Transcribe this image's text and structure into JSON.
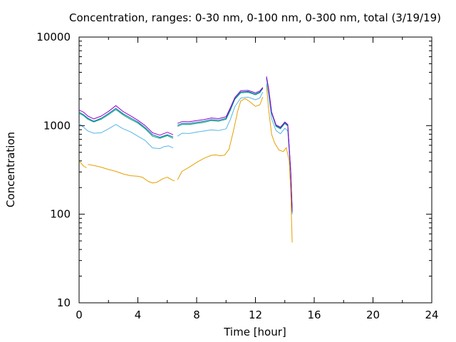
{
  "chart_data": {
    "type": "line",
    "title": "Concentration, ranges: 0-30 nm, 0-100 nm, 0-300 nm, total (3/19/19)",
    "xlabel": "Time [hour]",
    "ylabel": "Concentration",
    "xlim": [
      0,
      24
    ],
    "ylim": [
      10,
      10000
    ],
    "yscale": "log",
    "xticks": [
      0,
      4,
      8,
      12,
      16,
      20,
      24
    ],
    "yticks": [
      10,
      100,
      1000,
      10000
    ],
    "xtick_labels": [
      "0",
      "4",
      "8",
      "12",
      "16",
      "20",
      "24"
    ],
    "ytick_labels": [
      "10",
      "100",
      "1000",
      "10000"
    ],
    "grid": false,
    "legend": "none",
    "colors": [
      "#e69f00",
      "#56b4e9",
      "#009e73",
      "#0072b2",
      "#9400d3"
    ],
    "series": [
      {
        "color": "#e69f00",
        "segments": [
          [
            [
              0,
              400
            ],
            [
              0.3,
              350
            ],
            [
              0.5,
              335
            ]
          ],
          [
            [
              0.6,
              365
            ],
            [
              1.0,
              355
            ],
            [
              1.5,
              340
            ],
            [
              2.0,
              320
            ],
            [
              2.5,
              305
            ],
            [
              3.0,
              285
            ],
            [
              3.5,
              272
            ],
            [
              4.0,
              268
            ],
            [
              4.3,
              262
            ],
            [
              4.7,
              235
            ],
            [
              5.0,
              225
            ],
            [
              5.3,
              230
            ],
            [
              5.7,
              252
            ],
            [
              6.0,
              262
            ],
            [
              6.3,
              245
            ],
            [
              6.5,
              237
            ]
          ],
          [
            [
              6.7,
              245
            ],
            [
              7.0,
              305
            ],
            [
              7.5,
              340
            ],
            [
              8.0,
              385
            ],
            [
              8.5,
              428
            ],
            [
              9.0,
              462
            ],
            [
              9.3,
              467
            ],
            [
              9.6,
              457
            ],
            [
              9.9,
              465
            ],
            [
              10.2,
              540
            ],
            [
              10.5,
              870
            ],
            [
              10.8,
              1480
            ],
            [
              11.0,
              1900
            ],
            [
              11.3,
              2020
            ],
            [
              11.6,
              1870
            ],
            [
              12.0,
              1650
            ],
            [
              12.3,
              1720
            ],
            [
              12.5,
              2100
            ]
          ],
          [
            [
              12.75,
              2850
            ],
            [
              12.9,
              1500
            ],
            [
              13.1,
              800
            ],
            [
              13.3,
              640
            ],
            [
              13.6,
              530
            ],
            [
              13.9,
              510
            ],
            [
              14.1,
              565
            ],
            [
              14.3,
              400
            ],
            [
              14.4,
              180
            ],
            [
              14.5,
              48
            ]
          ]
        ]
      },
      {
        "color": "#56b4e9",
        "segments": [
          [
            [
              0,
              1060
            ],
            [
              0.3,
              960
            ],
            [
              0.6,
              870
            ],
            [
              1.0,
              820
            ],
            [
              1.5,
              830
            ],
            [
              2.0,
              920
            ],
            [
              2.5,
              1030
            ],
            [
              3.0,
              920
            ],
            [
              3.5,
              850
            ],
            [
              4.0,
              760
            ],
            [
              4.5,
              680
            ],
            [
              5.0,
              560
            ],
            [
              5.5,
              550
            ],
            [
              5.8,
              580
            ],
            [
              6.1,
              590
            ],
            [
              6.4,
              560
            ]
          ],
          [
            [
              6.7,
              760
            ],
            [
              7.0,
              820
            ],
            [
              7.5,
              815
            ],
            [
              8.0,
              845
            ],
            [
              8.5,
              870
            ],
            [
              9.0,
              895
            ],
            [
              9.5,
              880
            ],
            [
              10.0,
              920
            ],
            [
              10.3,
              1180
            ],
            [
              10.6,
              1640
            ],
            [
              11.0,
              2050
            ],
            [
              11.5,
              2100
            ],
            [
              12.0,
              1960
            ],
            [
              12.3,
              2050
            ],
            [
              12.5,
              2400
            ]
          ],
          [
            [
              12.75,
              3000
            ],
            [
              12.9,
              2200
            ],
            [
              13.1,
              1200
            ],
            [
              13.4,
              880
            ],
            [
              13.7,
              810
            ],
            [
              14.0,
              935
            ],
            [
              14.2,
              870
            ],
            [
              14.4,
              280
            ],
            [
              14.5,
              100
            ]
          ]
        ]
      },
      {
        "color": "#009e73",
        "segments": [
          [
            [
              0,
              1380
            ],
            [
              0.3,
              1300
            ],
            [
              0.6,
              1180
            ],
            [
              1.0,
              1100
            ],
            [
              1.5,
              1180
            ],
            [
              2.0,
              1330
            ],
            [
              2.5,
              1520
            ],
            [
              3.0,
              1320
            ],
            [
              3.5,
              1180
            ],
            [
              4.0,
              1070
            ],
            [
              4.5,
              920
            ],
            [
              5.0,
              760
            ],
            [
              5.5,
              720
            ],
            [
              6.0,
              770
            ],
            [
              6.4,
              720
            ]
          ],
          [
            [
              6.7,
              980
            ],
            [
              7.0,
              1030
            ],
            [
              7.5,
              1030
            ],
            [
              8.0,
              1060
            ],
            [
              8.5,
              1090
            ],
            [
              9.0,
              1140
            ],
            [
              9.5,
              1120
            ],
            [
              10.0,
              1180
            ],
            [
              10.3,
              1500
            ],
            [
              10.6,
              1980
            ],
            [
              11.0,
              2350
            ],
            [
              11.5,
              2380
            ],
            [
              12.0,
              2230
            ],
            [
              12.3,
              2360
            ],
            [
              12.5,
              2620
            ]
          ],
          [
            [
              12.75,
              3400
            ],
            [
              12.9,
              2500
            ],
            [
              13.1,
              1380
            ],
            [
              13.4,
              980
            ],
            [
              13.7,
              920
            ],
            [
              14.0,
              1060
            ],
            [
              14.2,
              990
            ],
            [
              14.4,
              300
            ],
            [
              14.5,
              105
            ]
          ]
        ]
      },
      {
        "color": "#0072b2",
        "segments": [
          [
            [
              0,
              1420
            ],
            [
              0.3,
              1330
            ],
            [
              0.6,
              1210
            ],
            [
              1.0,
              1120
            ],
            [
              1.5,
              1210
            ],
            [
              2.0,
              1370
            ],
            [
              2.5,
              1570
            ],
            [
              3.0,
              1360
            ],
            [
              3.5,
              1220
            ],
            [
              4.0,
              1100
            ],
            [
              4.5,
              950
            ],
            [
              5.0,
              790
            ],
            [
              5.5,
              740
            ],
            [
              6.0,
              790
            ],
            [
              6.4,
              745
            ]
          ],
          [
            [
              6.7,
              1010
            ],
            [
              7.0,
              1060
            ],
            [
              7.5,
              1060
            ],
            [
              8.0,
              1090
            ],
            [
              8.5,
              1120
            ],
            [
              9.0,
              1170
            ],
            [
              9.5,
              1150
            ],
            [
              10.0,
              1210
            ],
            [
              10.3,
              1550
            ],
            [
              10.6,
              2020
            ],
            [
              11.0,
              2400
            ],
            [
              11.5,
              2430
            ],
            [
              12.0,
              2280
            ],
            [
              12.3,
              2400
            ],
            [
              12.5,
              2660
            ]
          ],
          [
            [
              12.75,
              3500
            ],
            [
              12.9,
              2550
            ],
            [
              13.1,
              1400
            ],
            [
              13.4,
              1000
            ],
            [
              13.7,
              940
            ],
            [
              14.0,
              1080
            ],
            [
              14.2,
              1010
            ],
            [
              14.4,
              305
            ],
            [
              14.5,
              107
            ]
          ]
        ]
      },
      {
        "color": "#9400d3",
        "segments": [
          [
            [
              0,
              1500
            ],
            [
              0.3,
              1420
            ],
            [
              0.6,
              1280
            ],
            [
              1.0,
              1190
            ],
            [
              1.5,
              1280
            ],
            [
              2.0,
              1450
            ],
            [
              2.5,
              1680
            ],
            [
              3.0,
              1440
            ],
            [
              3.5,
              1290
            ],
            [
              4.0,
              1150
            ],
            [
              4.5,
              1000
            ],
            [
              5.0,
              830
            ],
            [
              5.5,
              780
            ],
            [
              6.0,
              840
            ],
            [
              6.4,
              790
            ]
          ],
          [
            [
              6.7,
              1060
            ],
            [
              7.0,
              1110
            ],
            [
              7.5,
              1105
            ],
            [
              8.0,
              1140
            ],
            [
              8.5,
              1170
            ],
            [
              9.0,
              1220
            ],
            [
              9.5,
              1200
            ],
            [
              10.0,
              1260
            ],
            [
              10.3,
              1600
            ],
            [
              10.6,
              2080
            ],
            [
              11.0,
              2480
            ],
            [
              11.5,
              2500
            ],
            [
              12.0,
              2350
            ],
            [
              12.3,
              2460
            ],
            [
              12.5,
              2700
            ]
          ],
          [
            [
              12.75,
              3600
            ],
            [
              12.9,
              2600
            ],
            [
              13.1,
              1430
            ],
            [
              13.4,
              1020
            ],
            [
              13.7,
              960
            ],
            [
              14.0,
              1100
            ],
            [
              14.2,
              1030
            ],
            [
              14.4,
              310
            ],
            [
              14.5,
              110
            ]
          ]
        ]
      }
    ]
  }
}
